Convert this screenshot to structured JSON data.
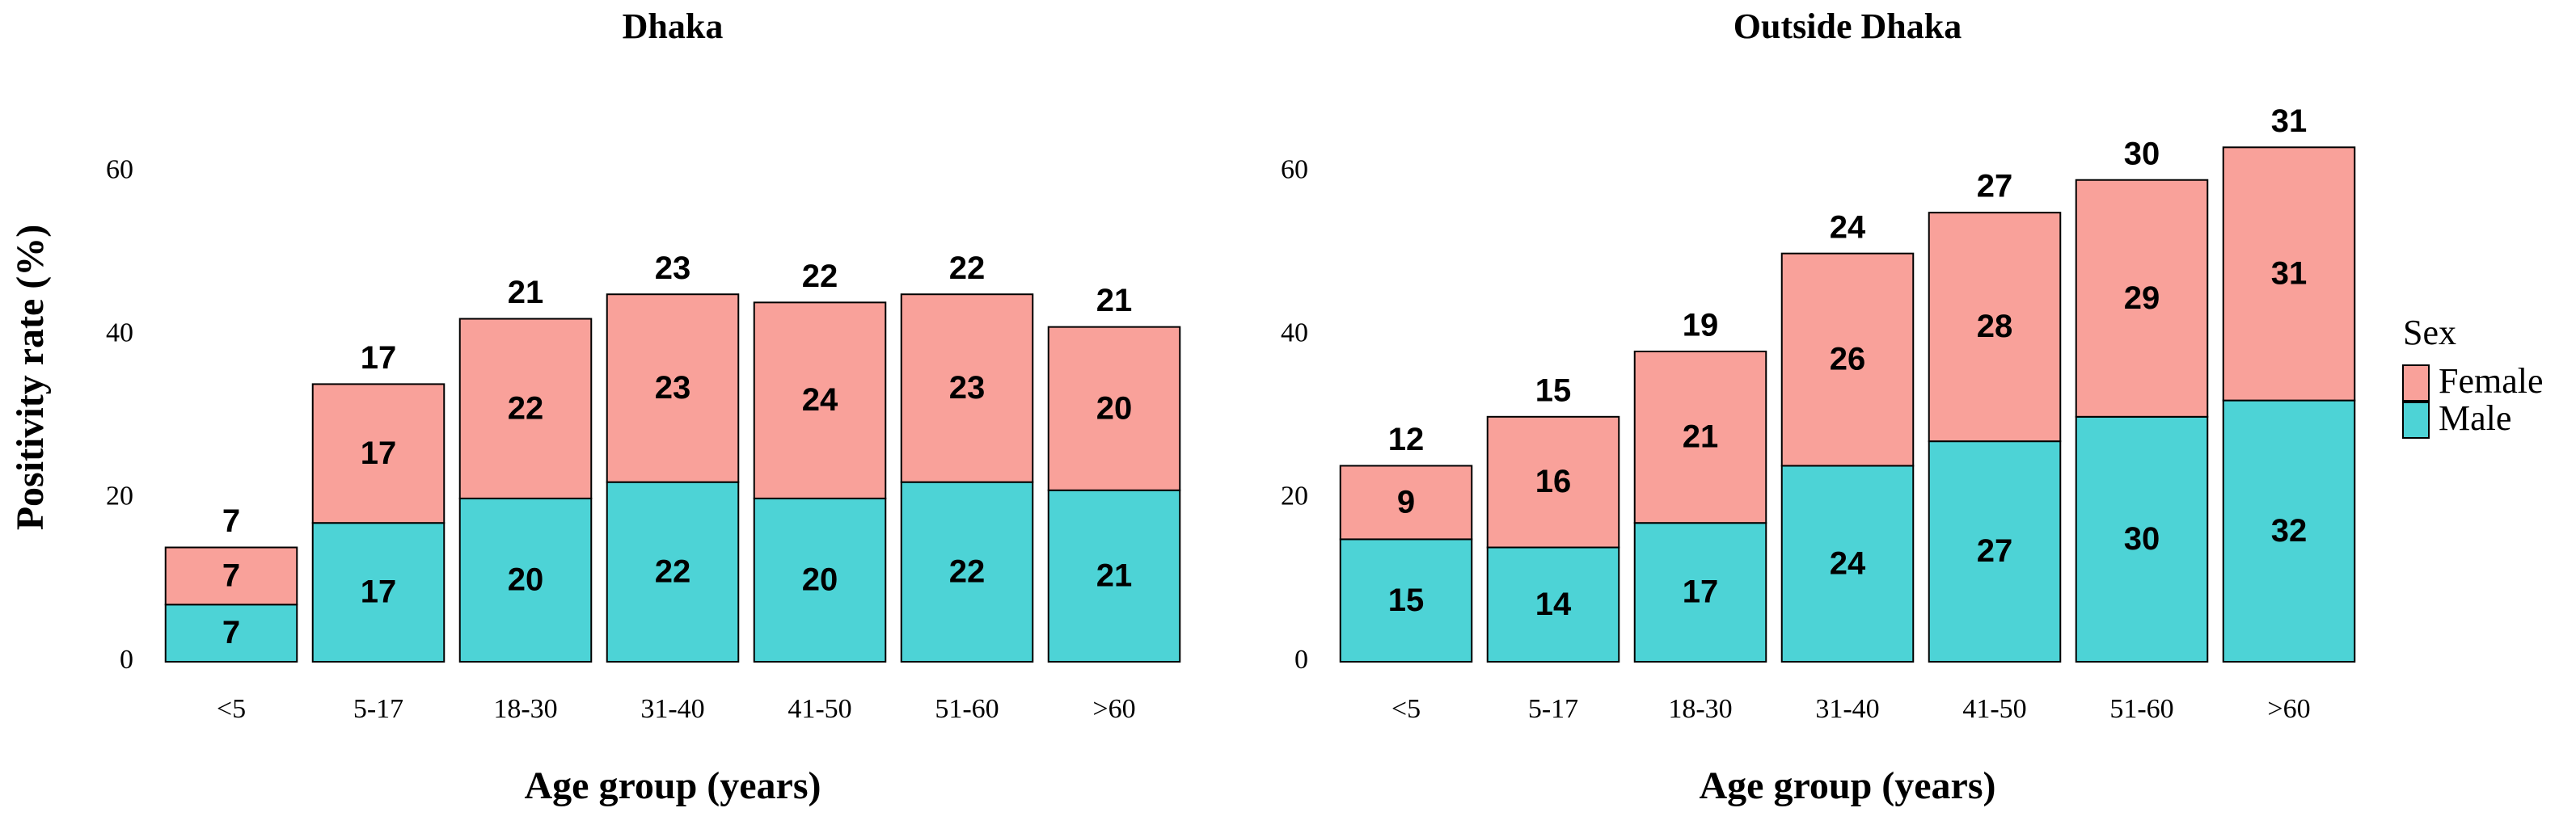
{
  "chart_data": [
    {
      "type": "stacked_bar",
      "title": "Dhaka",
      "xlabel": "Age group (years)",
      "ylabel": "Positivity rate (%)",
      "categories": [
        "<5",
        "5-17",
        "18-30",
        "31-40",
        "41-50",
        "51-60",
        ">60"
      ],
      "series": [
        {
          "name": "Female",
          "color": "#f9a19a",
          "values": [
            7,
            17,
            22,
            23,
            24,
            23,
            20
          ]
        },
        {
          "name": "Male",
          "color": "#4dd3d6",
          "values": [
            7,
            17,
            20,
            22,
            20,
            22,
            21
          ]
        }
      ],
      "overall": [
        7,
        17,
        21,
        23,
        22,
        22,
        21
      ],
      "ylim": [
        0,
        66
      ],
      "yticks": [
        0,
        20,
        40,
        60
      ]
    },
    {
      "type": "stacked_bar",
      "title": "Outside Dhaka",
      "xlabel": "Age group (years)",
      "categories": [
        "<5",
        "5-17",
        "18-30",
        "31-40",
        "41-50",
        "51-60",
        ">60"
      ],
      "series": [
        {
          "name": "Female",
          "color": "#f9a19a",
          "values": [
            9,
            16,
            21,
            26,
            28,
            29,
            31
          ]
        },
        {
          "name": "Male",
          "color": "#4dd3d6",
          "values": [
            15,
            14,
            17,
            24,
            27,
            30,
            32
          ]
        }
      ],
      "overall": [
        12,
        15,
        19,
        24,
        27,
        30,
        31
      ],
      "ylim": [
        0,
        66
      ],
      "yticks": [
        0,
        20,
        40,
        60
      ],
      "legend_title": "Sex"
    }
  ]
}
